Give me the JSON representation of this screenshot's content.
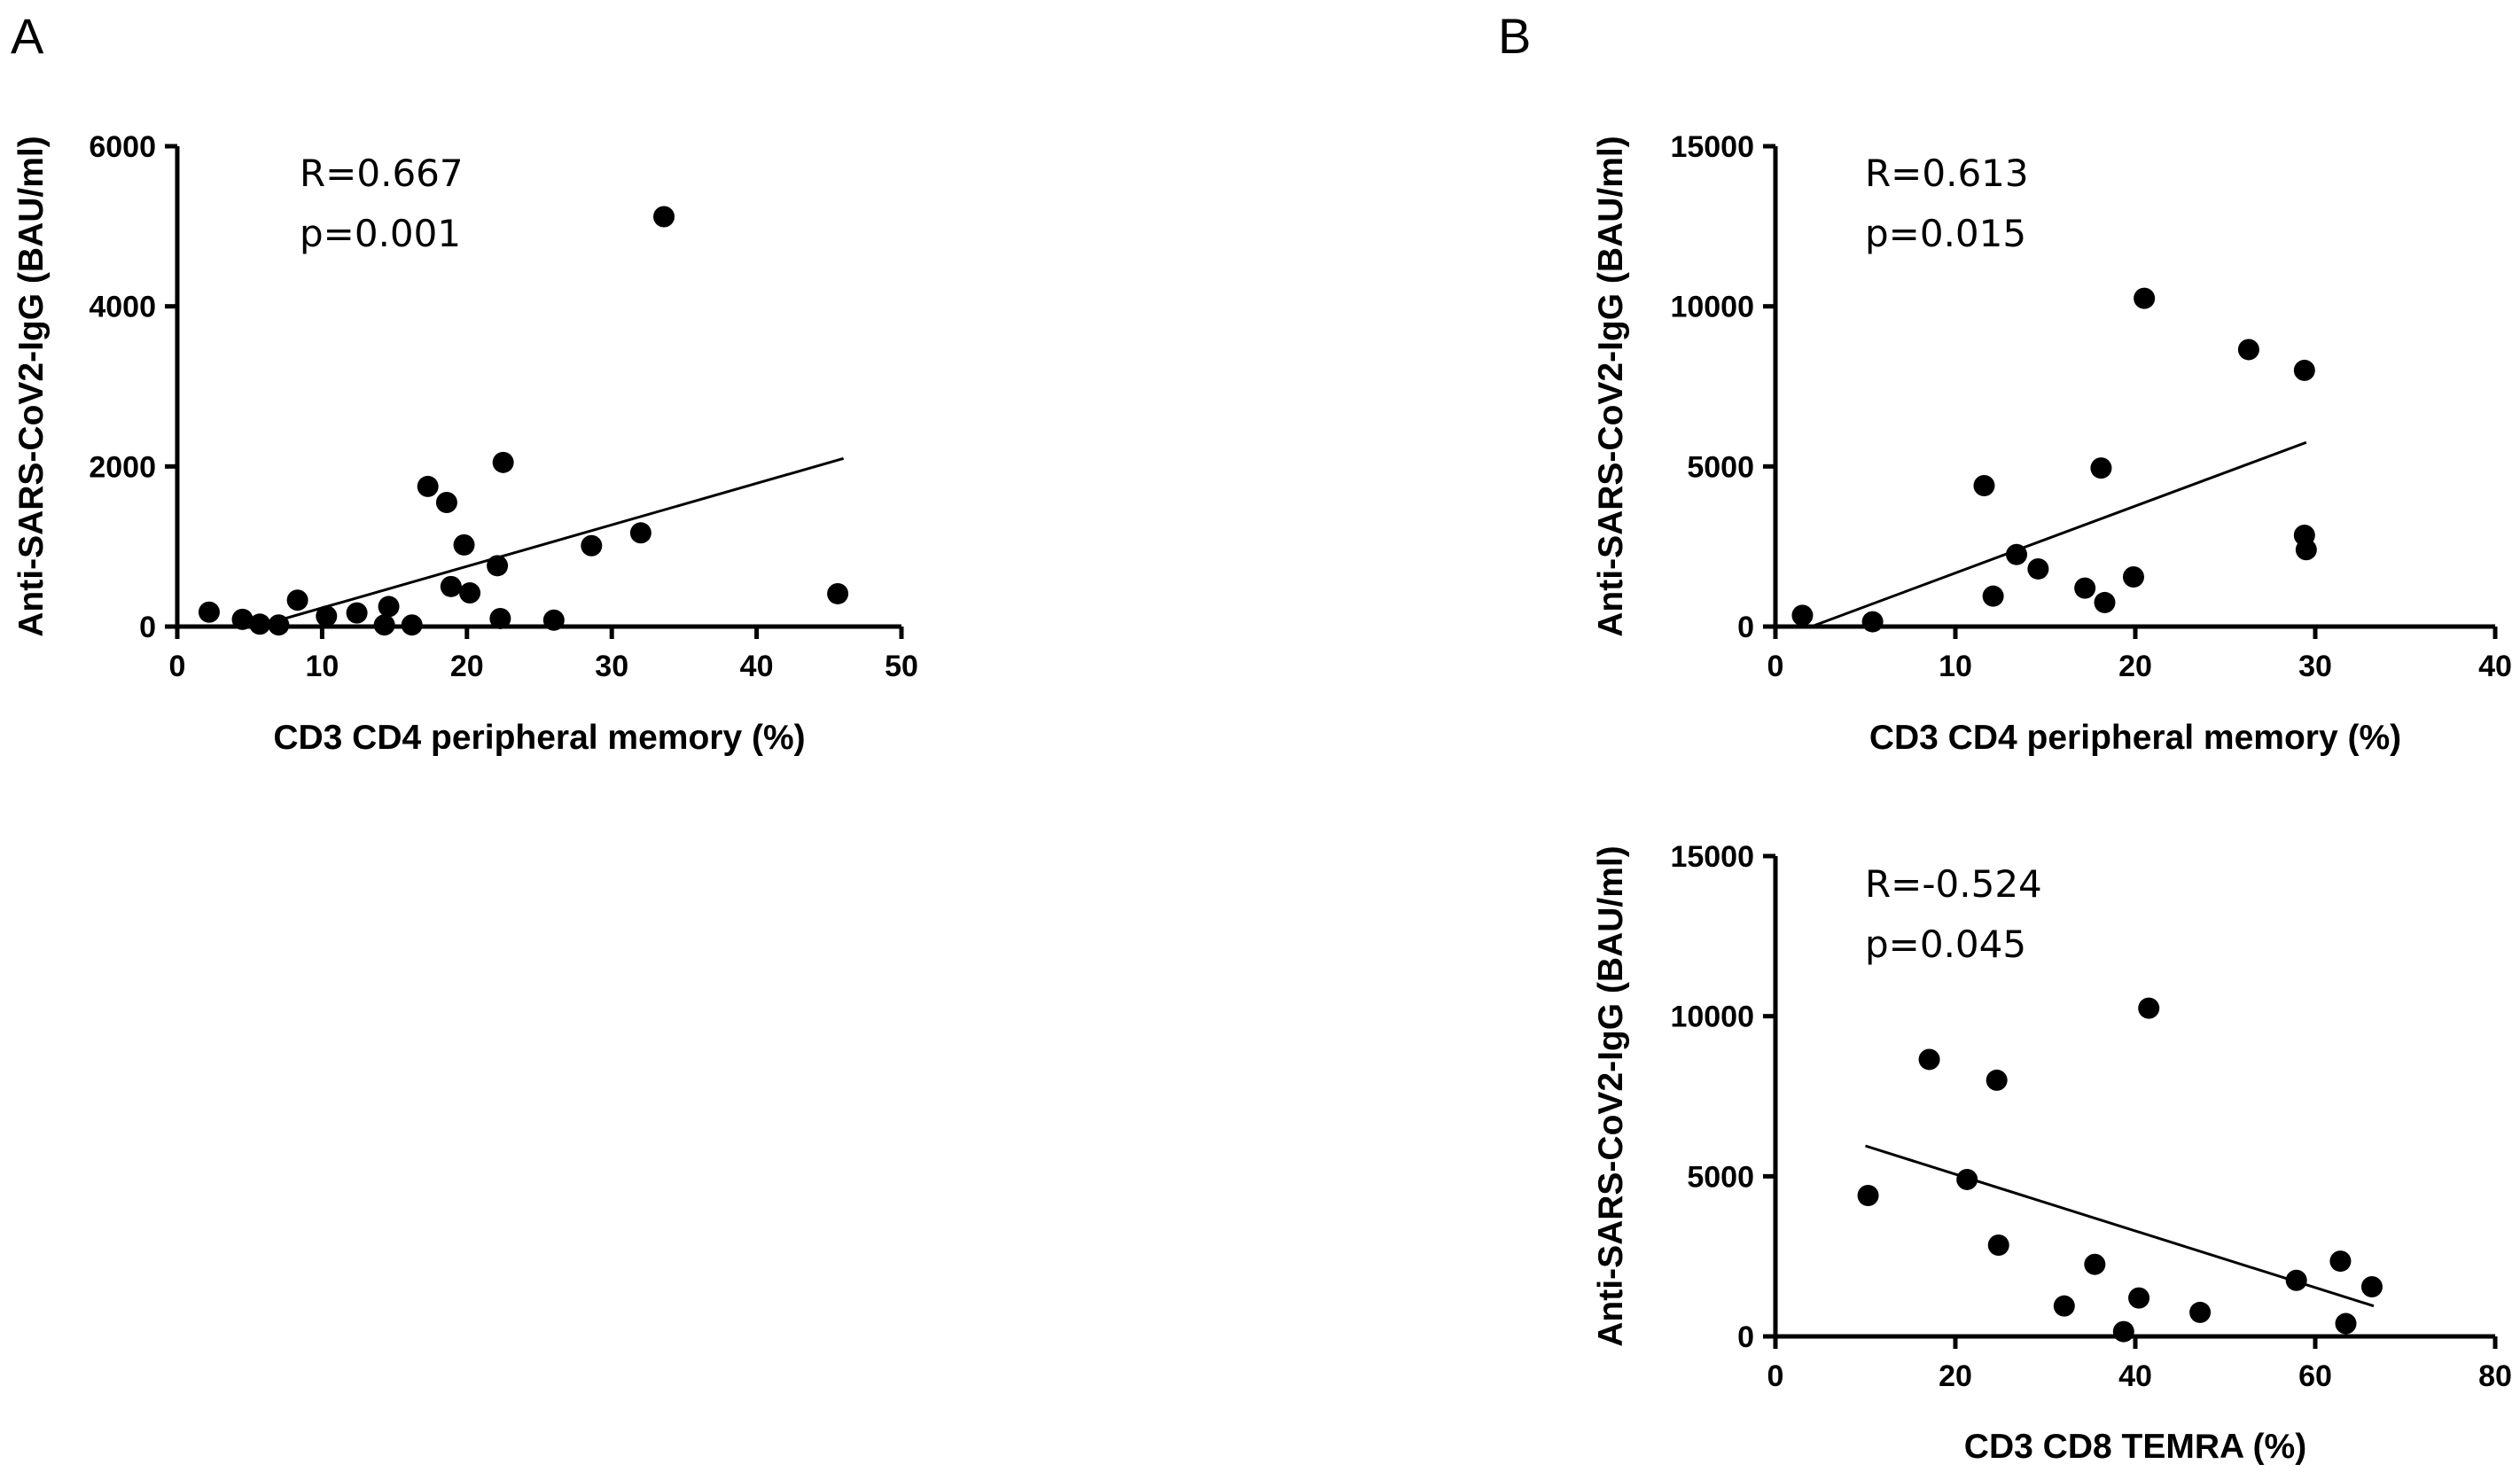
{
  "panel_labels": {
    "a": "A",
    "b": "B"
  },
  "chart_data": [
    {
      "id": "A",
      "type": "scatter",
      "title": "",
      "xlabel": "CD3 CD4 peripheral memory (%)",
      "ylabel": "Anti-SARS-CoV2-IgG (BAU/ml)",
      "xlim": [
        0,
        50
      ],
      "ylim": [
        0,
        6000
      ],
      "xticks": [
        0,
        10,
        20,
        30,
        40,
        50
      ],
      "yticks": [
        0,
        2000,
        4000,
        6000
      ],
      "xtick_labels": [
        "0",
        "10",
        "20",
        "30",
        "40",
        "50"
      ],
      "ytick_labels": [
        "0",
        "2000",
        "4000",
        "6000"
      ],
      "annotations": [
        "R=0.667",
        "p=0.001"
      ],
      "points": [
        [
          2.2,
          180
        ],
        [
          4.5,
          90
        ],
        [
          5.7,
          30
        ],
        [
          7.0,
          20
        ],
        [
          8.3,
          330
        ],
        [
          10.3,
          130
        ],
        [
          12.4,
          170
        ],
        [
          14.3,
          20
        ],
        [
          14.6,
          250
        ],
        [
          16.2,
          20
        ],
        [
          17.3,
          1750
        ],
        [
          18.6,
          1550
        ],
        [
          18.9,
          500
        ],
        [
          19.8,
          1020
        ],
        [
          20.2,
          420
        ],
        [
          22.1,
          760
        ],
        [
          22.3,
          100
        ],
        [
          22.5,
          2050
        ],
        [
          26.0,
          80
        ],
        [
          28.6,
          1010
        ],
        [
          32.0,
          1170
        ],
        [
          33.6,
          5120
        ],
        [
          45.6,
          410
        ]
      ],
      "fit_line": [
        [
          5.5,
          0
        ],
        [
          46,
          2100
        ]
      ]
    },
    {
      "id": "B-top",
      "type": "scatter",
      "title": "",
      "xlabel": "CD3 CD4 peripheral memory (%)",
      "ylabel": "Anti-SARS-CoV2-IgG (BAU/ml)",
      "xlim": [
        0,
        40
      ],
      "ylim": [
        0,
        15000
      ],
      "xticks": [
        0,
        10,
        20,
        30,
        40
      ],
      "yticks": [
        0,
        5000,
        10000,
        15000
      ],
      "xtick_labels": [
        "0",
        "10",
        "20",
        "30",
        "40"
      ],
      "ytick_labels": [
        "0",
        "5000",
        "10000",
        "15000"
      ],
      "annotations": [
        "R=0.613",
        "p=0.015"
      ],
      "points": [
        [
          1.5,
          350
        ],
        [
          5.4,
          150
        ],
        [
          11.6,
          4400
        ],
        [
          12.1,
          950
        ],
        [
          13.4,
          2250
        ],
        [
          14.6,
          1800
        ],
        [
          17.2,
          1200
        ],
        [
          18.1,
          4950
        ],
        [
          18.3,
          750
        ],
        [
          19.9,
          1550
        ],
        [
          20.5,
          10250
        ],
        [
          26.3,
          8650
        ],
        [
          29.4,
          8000
        ],
        [
          29.4,
          2850
        ],
        [
          29.5,
          2400
        ]
      ],
      "fit_line": [
        [
          2,
          0
        ],
        [
          29.5,
          5750
        ]
      ]
    },
    {
      "id": "B-bottom",
      "type": "scatter",
      "title": "",
      "xlabel": "CD3 CD8 TEMRA (%)",
      "ylabel": "Anti-SARS-CoV2-IgG (BAU/ml)",
      "xlim": [
        0,
        80
      ],
      "ylim": [
        0,
        15000
      ],
      "xticks": [
        0,
        20,
        40,
        60,
        80
      ],
      "yticks": [
        0,
        5000,
        10000,
        15000
      ],
      "xtick_labels": [
        "0",
        "20",
        "40",
        "60",
        "80"
      ],
      "ytick_labels": [
        "0",
        "5000",
        "10000",
        "15000"
      ],
      "annotations": [
        "R=-0.524",
        "p=0.045"
      ],
      "points": [
        [
          10.3,
          4400
        ],
        [
          17.1,
          8650
        ],
        [
          21.3,
          4900
        ],
        [
          24.6,
          8000
        ],
        [
          24.8,
          2850
        ],
        [
          32.1,
          950
        ],
        [
          35.5,
          2250
        ],
        [
          38.7,
          150
        ],
        [
          40.4,
          1200
        ],
        [
          41.5,
          10250
        ],
        [
          47.2,
          750
        ],
        [
          57.9,
          1750
        ],
        [
          62.8,
          2350
        ],
        [
          63.4,
          400
        ],
        [
          66.3,
          1550
        ]
      ],
      "fit_line": [
        [
          10,
          5950
        ],
        [
          66.5,
          950
        ]
      ]
    }
  ]
}
